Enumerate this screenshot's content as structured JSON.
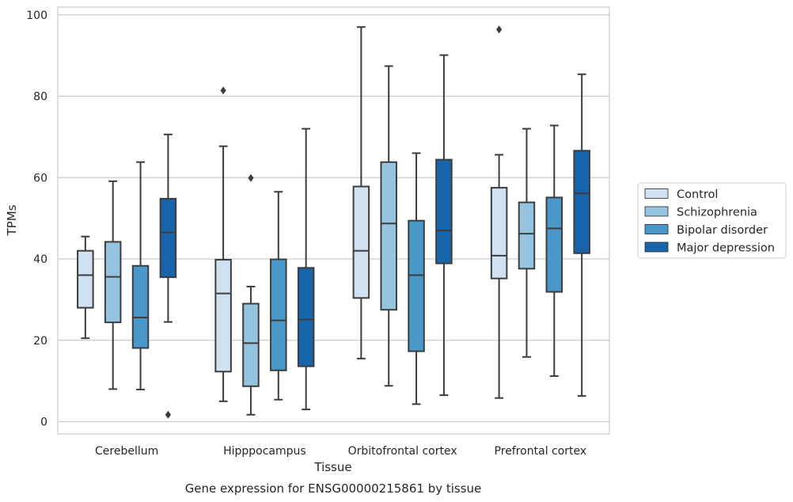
{
  "chart_data": {
    "type": "box",
    "caption": "Gene expression for ENSG00000215861 by tissue",
    "xlabel": "Tissue",
    "ylabel": "TPMs",
    "ylim": [
      -3,
      102
    ],
    "yticks": [
      0,
      20,
      40,
      60,
      80,
      100
    ],
    "grid": "horizontal",
    "legend_position": "right",
    "categories": [
      "Cerebellum",
      "Hipppocampus",
      "Orbitofrontal cortex",
      "Prefrontal cortex"
    ],
    "series": [
      {
        "name": "Control",
        "color": "#d0e1f2",
        "boxes": [
          {
            "whislo": 20.5,
            "q1": 28.0,
            "med": 36.0,
            "q3": 42.0,
            "whishi": 45.5,
            "fliers": []
          },
          {
            "whislo": 5.0,
            "q1": 12.3,
            "med": 31.5,
            "q3": 39.8,
            "whishi": 67.7,
            "fliers": [
              81.4
            ]
          },
          {
            "whislo": 15.5,
            "q1": 30.4,
            "med": 42.0,
            "q3": 57.8,
            "whishi": 97.0,
            "fliers": []
          },
          {
            "whislo": 5.8,
            "q1": 35.2,
            "med": 40.8,
            "q3": 57.5,
            "whishi": 65.6,
            "fliers": [
              96.4
            ]
          }
        ]
      },
      {
        "name": "Schizophrenia",
        "color": "#94c4df",
        "boxes": [
          {
            "whislo": 8.0,
            "q1": 24.4,
            "med": 35.6,
            "q3": 44.2,
            "whishi": 59.1,
            "fliers": []
          },
          {
            "whislo": 1.7,
            "q1": 8.7,
            "med": 19.3,
            "q3": 29.0,
            "whishi": 33.2,
            "fliers": [
              59.9
            ]
          },
          {
            "whislo": 8.8,
            "q1": 27.5,
            "med": 48.7,
            "q3": 63.8,
            "whishi": 87.4,
            "fliers": []
          },
          {
            "whislo": 15.9,
            "q1": 37.6,
            "med": 46.2,
            "q3": 53.9,
            "whishi": 72.0,
            "fliers": []
          }
        ]
      },
      {
        "name": "Bipolar disorder",
        "color": "#4a98c9",
        "boxes": [
          {
            "whislo": 7.9,
            "q1": 18.1,
            "med": 25.6,
            "q3": 38.3,
            "whishi": 63.8,
            "fliers": []
          },
          {
            "whislo": 5.4,
            "q1": 12.6,
            "med": 24.9,
            "q3": 39.9,
            "whishi": 56.5,
            "fliers": []
          },
          {
            "whislo": 4.3,
            "q1": 17.3,
            "med": 36.0,
            "q3": 49.4,
            "whishi": 66.0,
            "fliers": []
          },
          {
            "whislo": 11.2,
            "q1": 31.9,
            "med": 47.5,
            "q3": 55.1,
            "whishi": 72.8,
            "fliers": []
          }
        ]
      },
      {
        "name": "Major depression",
        "color": "#1764ab",
        "boxes": [
          {
            "whislo": 24.5,
            "q1": 35.5,
            "med": 46.5,
            "q3": 54.8,
            "whishi": 70.6,
            "fliers": [
              1.7
            ]
          },
          {
            "whislo": 3.0,
            "q1": 13.6,
            "med": 25.1,
            "q3": 37.8,
            "whishi": 72.0,
            "fliers": []
          },
          {
            "whislo": 6.5,
            "q1": 38.9,
            "med": 47.0,
            "q3": 64.4,
            "whishi": 90.1,
            "fliers": []
          },
          {
            "whislo": 6.3,
            "q1": 41.4,
            "med": 56.1,
            "q3": 66.6,
            "whishi": 85.4,
            "fliers": []
          }
        ]
      }
    ]
  }
}
